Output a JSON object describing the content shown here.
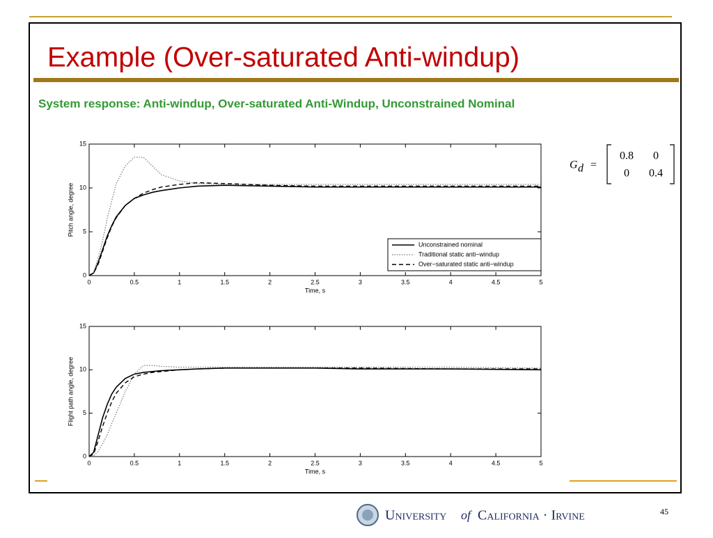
{
  "slide": {
    "title": "Example (Over-saturated Anti-windup)",
    "subtitle": "System response: Anti-windup, Over-saturated Anti-Windup, Unconstrained Nominal"
  },
  "chart_data": [
    {
      "type": "line",
      "x_label": "Time, s",
      "y_label": "Pitch angle, degree",
      "x": [
        0,
        0.05,
        0.1,
        0.15,
        0.2,
        0.25,
        0.3,
        0.4,
        0.5,
        0.6,
        0.7,
        0.8,
        1,
        1.2,
        1.5,
        2,
        2.5,
        3,
        4,
        5
      ],
      "xlim": [
        0,
        5
      ],
      "ylim": [
        0,
        15
      ],
      "xticks": [
        0,
        0.5,
        1,
        1.5,
        2,
        2.5,
        3,
        3.5,
        4,
        4.5,
        5
      ],
      "yticks": [
        0,
        5,
        10,
        15
      ],
      "legend": "lower right",
      "series": [
        {
          "name": "Unconstrained nominal",
          "color": "#000000",
          "style": "solid",
          "values": [
            0,
            0.3,
            1.5,
            3,
            4.5,
            5.7,
            6.7,
            8,
            8.8,
            9.2,
            9.5,
            9.7,
            10,
            10.2,
            10.3,
            10.2,
            10.1,
            10.1,
            10.1,
            10.1
          ]
        },
        {
          "name": "Traditional static anti−windup",
          "color": "#888888",
          "style": "dotted",
          "values": [
            0,
            0.4,
            2,
            4,
            6.5,
            8.5,
            10.5,
            12.5,
            13.5,
            13.5,
            12.5,
            11.5,
            10.8,
            10.5,
            10.4,
            10.4,
            10.4,
            10.4,
            10.4,
            10.4
          ]
        },
        {
          "name": "Over−saturated static anti−windup",
          "color": "#000000",
          "style": "dashed",
          "values": [
            0,
            0.3,
            1.3,
            2.8,
            4.3,
            5.6,
            6.6,
            8,
            8.8,
            9.4,
            9.8,
            10.1,
            10.4,
            10.6,
            10.5,
            10.3,
            10.2,
            10.2,
            10.2,
            10.2
          ]
        }
      ]
    },
    {
      "type": "line",
      "x_label": "Time, s",
      "y_label": "Flight path angle, degree",
      "x": [
        0,
        0.05,
        0.1,
        0.15,
        0.2,
        0.25,
        0.3,
        0.4,
        0.5,
        0.6,
        0.7,
        0.8,
        1,
        1.2,
        1.5,
        2,
        2.5,
        3,
        4,
        5
      ],
      "xlim": [
        0,
        5
      ],
      "ylim": [
        0,
        15
      ],
      "xticks": [
        0,
        0.5,
        1,
        1.5,
        2,
        2.5,
        3,
        3.5,
        4,
        4.5,
        5
      ],
      "yticks": [
        0,
        5,
        10,
        15
      ],
      "series": [
        {
          "color": "#000000",
          "style": "solid",
          "values": [
            0,
            0.5,
            2.5,
            4.5,
            6,
            7.2,
            8,
            9,
            9.5,
            9.7,
            9.8,
            9.9,
            10,
            10.1,
            10.2,
            10.2,
            10.2,
            10.1,
            10.1,
            10
          ]
        },
        {
          "color": "#888888",
          "style": "dotted",
          "values": [
            0,
            0.1,
            0.6,
            1.5,
            2.5,
            3.8,
            5,
            7.5,
            9.5,
            10.5,
            10.5,
            10.4,
            10.3,
            10.3,
            10.3,
            10.3,
            10.3,
            10.3,
            10.3,
            10.2
          ]
        },
        {
          "color": "#000000",
          "style": "dashed",
          "values": [
            0,
            0.3,
            1.8,
            3.5,
            5,
            6.3,
            7.3,
            8.5,
            9.2,
            9.5,
            9.7,
            9.8,
            10,
            10.1,
            10.2,
            10.2,
            10.2,
            10.2,
            10.1,
            10.1
          ]
        }
      ]
    }
  ],
  "equation": {
    "lhs": "G",
    "sub": "d",
    "relation": "=",
    "matrix": [
      [
        0.8,
        0
      ],
      [
        0,
        0.4
      ]
    ]
  },
  "footer": {
    "university": "University",
    "of": "of",
    "campus": "California · Irvine",
    "page_number": 45
  }
}
